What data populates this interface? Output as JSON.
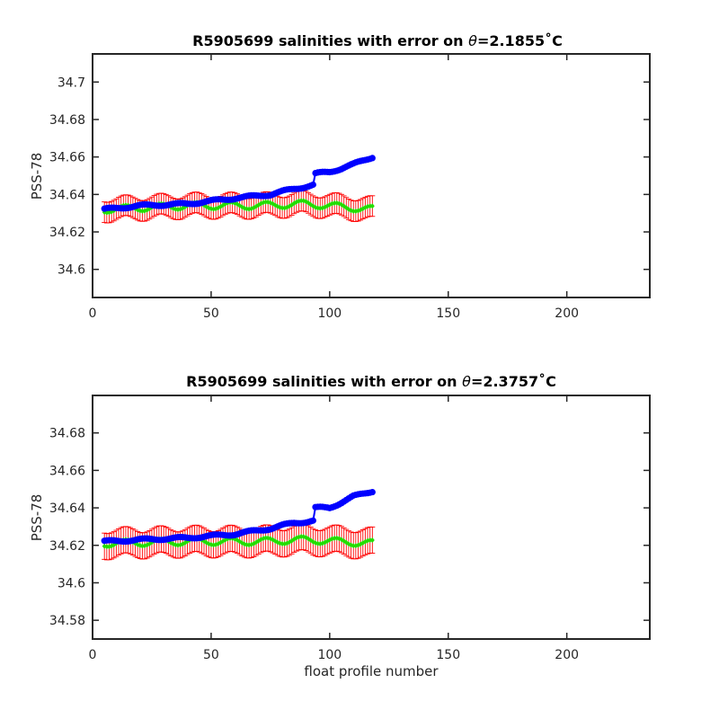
{
  "colors": {
    "mapped": "#0000ff",
    "float": "#22dd00",
    "error": "#ff0000",
    "axes": "#262626"
  },
  "chart_data": [
    {
      "type": "scatter",
      "title": "R5905699 salinities with error on θ=2.1855˚C",
      "title_parts": {
        "prefix": "R5905699 salinities with error on ",
        "theta": "θ",
        "suffix": "=2.1855˚C"
      },
      "xlabel": "",
      "ylabel": "PSS-78",
      "xlim": [
        0,
        235
      ],
      "ylim": [
        34.585,
        34.715
      ],
      "xticks": [
        0,
        50,
        100,
        150,
        200
      ],
      "yticks": [
        34.6,
        34.62,
        34.64,
        34.66,
        34.68,
        34.7
      ],
      "ytick_labels": [
        "34.6",
        "34.62",
        "34.64",
        "34.66",
        "34.68",
        "34.7"
      ],
      "profiles": {
        "start": 5,
        "end": 118
      },
      "blue_series_knots": [
        [
          5,
          34.632
        ],
        [
          20,
          34.634
        ],
        [
          40,
          34.635
        ],
        [
          60,
          34.638
        ],
        [
          75,
          34.64
        ],
        [
          85,
          34.643
        ],
        [
          93,
          34.645
        ],
        [
          94,
          34.651
        ],
        [
          100,
          34.652
        ],
        [
          110,
          34.656
        ],
        [
          118,
          34.66
        ]
      ],
      "green_series_knots": [
        [
          5,
          34.632
        ],
        [
          40,
          34.634
        ],
        [
          70,
          34.634
        ],
        [
          90,
          34.635
        ],
        [
          118,
          34.632
        ]
      ],
      "error_halfwidth": 0.0055
    },
    {
      "type": "scatter",
      "title": "R5905699 salinities with error on θ=2.3757˚C",
      "title_parts": {
        "prefix": "R5905699 salinities with error on ",
        "theta": "θ",
        "suffix": "=2.3757˚C"
      },
      "xlabel": "float profile number",
      "ylabel": "PSS-78",
      "xlim": [
        0,
        235
      ],
      "ylim": [
        34.57,
        34.7
      ],
      "xticks": [
        0,
        50,
        100,
        150,
        200
      ],
      "yticks": [
        34.58,
        34.6,
        34.62,
        34.64,
        34.66,
        34.68
      ],
      "ytick_labels": [
        "34.58",
        "34.6",
        "34.62",
        "34.64",
        "34.66",
        "34.68"
      ],
      "profiles": {
        "start": 5,
        "end": 118
      },
      "blue_series_knots": [
        [
          5,
          34.622
        ],
        [
          20,
          34.623
        ],
        [
          40,
          34.624
        ],
        [
          60,
          34.626
        ],
        [
          75,
          34.629
        ],
        [
          85,
          34.632
        ],
        [
          93,
          34.633
        ],
        [
          94,
          34.64
        ],
        [
          100,
          34.64
        ],
        [
          110,
          34.646
        ],
        [
          118,
          34.649
        ]
      ],
      "green_series_knots": [
        [
          5,
          34.621
        ],
        [
          40,
          34.622
        ],
        [
          70,
          34.622
        ],
        [
          90,
          34.623
        ],
        [
          118,
          34.621
        ]
      ],
      "error_halfwidth": 0.007
    }
  ]
}
